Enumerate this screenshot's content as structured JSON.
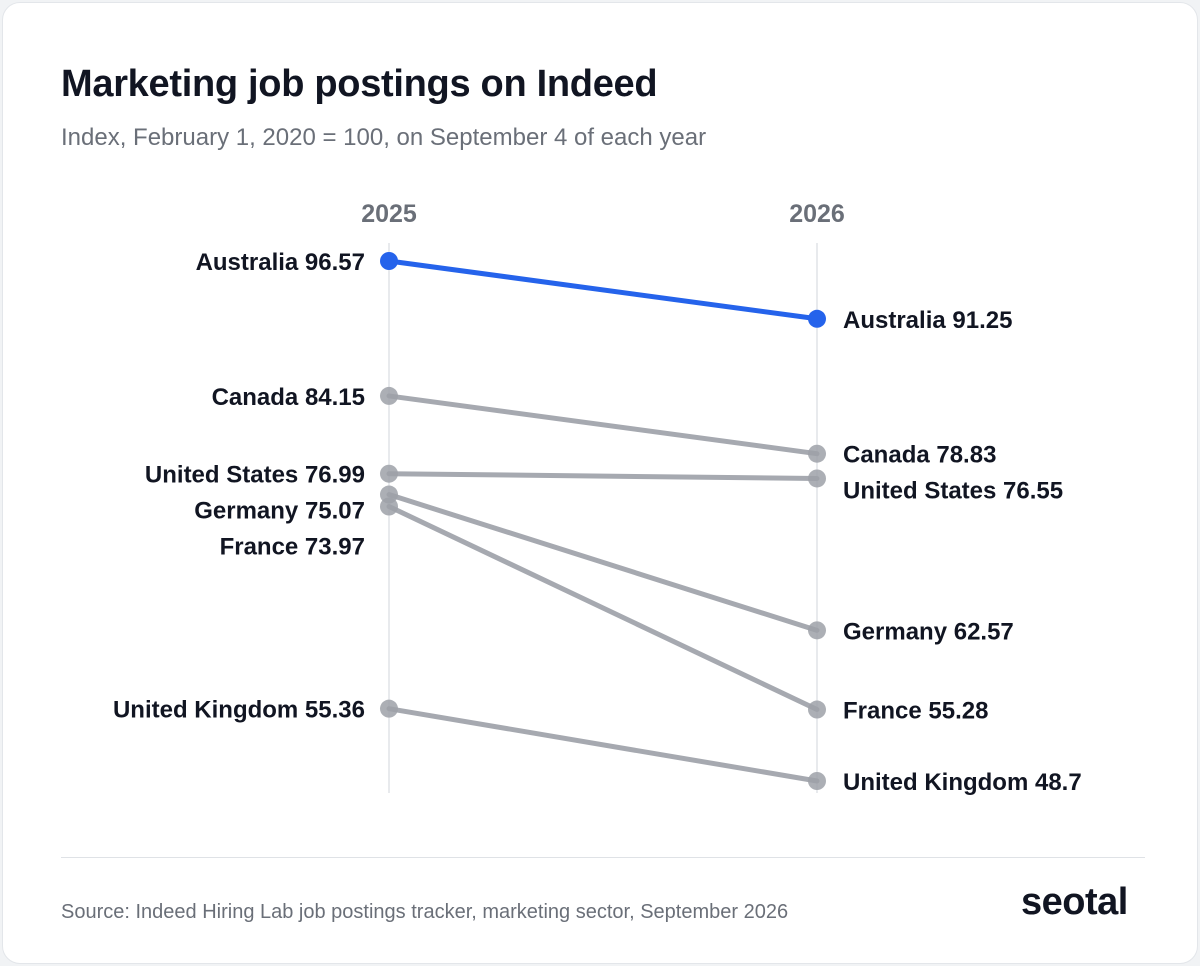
{
  "header": {
    "title": "Marketing job postings on Indeed",
    "subtitle": "Index, February 1, 2020 = 100, on September 4 of each year"
  },
  "footer": {
    "source": "Source: Indeed Hiring Lab job postings tracker, marketing sector, September 2026",
    "logo": "seotal"
  },
  "colors": {
    "highlight": "#2563eb",
    "muted_line": "#a6a9b0",
    "muted_dot": "#9ea1a8",
    "axis_line": "#e1e3e7",
    "label_text": "#111522",
    "year_text": "#6a6f78"
  },
  "chart_data": {
    "type": "slope",
    "x": [
      "2025",
      "2026"
    ],
    "series": [
      {
        "name": "Australia",
        "values": [
          96.57,
          91.25
        ],
        "highlight": true
      },
      {
        "name": "Canada",
        "values": [
          84.15,
          78.83
        ],
        "highlight": false
      },
      {
        "name": "United States",
        "values": [
          76.99,
          76.55
        ],
        "highlight": false
      },
      {
        "name": "Germany",
        "values": [
          75.07,
          62.57
        ],
        "highlight": false
      },
      {
        "name": "France",
        "values": [
          73.97,
          55.28
        ],
        "highlight": false
      },
      {
        "name": "United Kingdom",
        "values": [
          55.36,
          48.7
        ],
        "highlight": false
      }
    ],
    "labels_left": [
      "Australia 96.57",
      "Canada 84.15",
      "United States 76.99",
      "Germany 75.07",
      "France 73.97",
      "United Kingdom 55.36"
    ],
    "labels_right": [
      "Australia 91.25",
      "Canada 78.83",
      "United States 76.55",
      "Germany 62.57",
      "France 55.28",
      "United Kingdom 48.7"
    ],
    "ylim": [
      48.7,
      96.57
    ],
    "grid": false,
    "legend": "none"
  }
}
